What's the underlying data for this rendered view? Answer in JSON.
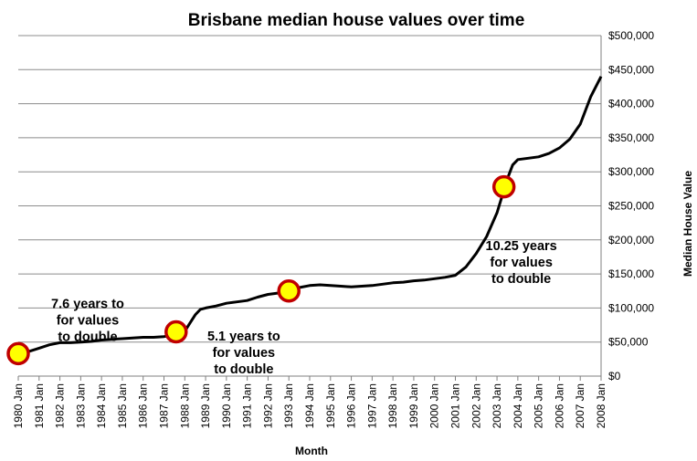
{
  "chart_data": {
    "type": "line",
    "title": "Brisbane median house values over time",
    "xlabel": "Month",
    "ylabel": "Median House Value",
    "y_axis_side": "right",
    "ylim": [
      0,
      500000
    ],
    "y_ticks": [
      "$0",
      "$50,000",
      "$100,000",
      "$150,000",
      "$200,000",
      "$250,000",
      "$300,000",
      "$350,000",
      "$400,000",
      "$450,000",
      "$500,000"
    ],
    "x_ticks": [
      "1980 Jan",
      "1981 Jan",
      "1982 Jan",
      "1983 Jan",
      "1984 Jan",
      "1985 Jan",
      "1986 Jan",
      "1987 Jan",
      "1988 Jan",
      "1989 Jan",
      "1990 Jan",
      "1991 Jan",
      "1992 Jan",
      "1993 Jan",
      "1994 Jan",
      "1995 Jan",
      "1996 Jan",
      "1997 Jan",
      "1998 Jan",
      "1999 Jan",
      "2000 Jan",
      "2001 Jan",
      "2002 Jan",
      "2003 Jan",
      "2004 Jan",
      "2005 Jan",
      "2006 Jan",
      "2007 Jan",
      "2008 Jan"
    ],
    "grid": true,
    "series": [
      {
        "color": "#000000",
        "x": [
          "1980-01",
          "1980-07",
          "1981-01",
          "1981-07",
          "1982-01",
          "1982-07",
          "1983-01",
          "1983-07",
          "1984-01",
          "1984-07",
          "1985-01",
          "1985-07",
          "1986-01",
          "1986-07",
          "1987-01",
          "1987-07",
          "1988-01",
          "1988-04",
          "1988-07",
          "1988-10",
          "1989-01",
          "1989-07",
          "1990-01",
          "1990-07",
          "1991-01",
          "1991-07",
          "1992-01",
          "1992-07",
          "1993-01",
          "1993-07",
          "1994-01",
          "1994-07",
          "1995-01",
          "1995-07",
          "1996-01",
          "1996-07",
          "1997-01",
          "1997-07",
          "1998-01",
          "1998-07",
          "1999-01",
          "1999-07",
          "2000-01",
          "2000-07",
          "2001-01",
          "2001-07",
          "2002-01",
          "2002-07",
          "2003-01",
          "2003-04",
          "2003-07",
          "2003-10",
          "2004-01",
          "2004-07",
          "2005-01",
          "2005-07",
          "2006-01",
          "2006-07",
          "2007-01",
          "2007-07",
          "2008-01"
        ],
        "values": [
          33000,
          36000,
          41000,
          46000,
          49000,
          49000,
          50000,
          51000,
          53000,
          54000,
          55000,
          56000,
          57000,
          57000,
          58000,
          60000,
          66000,
          78000,
          90000,
          98000,
          100000,
          103000,
          107000,
          109000,
          111000,
          116000,
          120000,
          122000,
          125000,
          130000,
          133000,
          134000,
          133000,
          132000,
          131000,
          132000,
          133000,
          135000,
          137000,
          138000,
          140000,
          141000,
          143000,
          145000,
          148000,
          160000,
          180000,
          205000,
          240000,
          265000,
          290000,
          310000,
          318000,
          320000,
          322000,
          327000,
          335000,
          348000,
          370000,
          410000,
          440000
        ]
      }
    ],
    "markers": [
      {
        "x": "1980-01",
        "value": 33000
      },
      {
        "x": "1987-08",
        "value": 65000
      },
      {
        "x": "1993-01",
        "value": 125000
      },
      {
        "x": "2003-05",
        "value": 278000
      }
    ],
    "marker_fill": "#ffff00",
    "marker_stroke": "#c00000",
    "annotations": [
      {
        "lines": [
          "7.6 years to",
          "for values",
          "to double"
        ],
        "x": "1983-05",
        "value": 100000
      },
      {
        "lines": [
          "5.1 years to",
          "for values",
          "to double"
        ],
        "x": "1990-11",
        "value": 52000
      },
      {
        "lines": [
          "10.25 years",
          "for values",
          "to double"
        ],
        "x": "2004-03",
        "value": 185000
      }
    ]
  }
}
